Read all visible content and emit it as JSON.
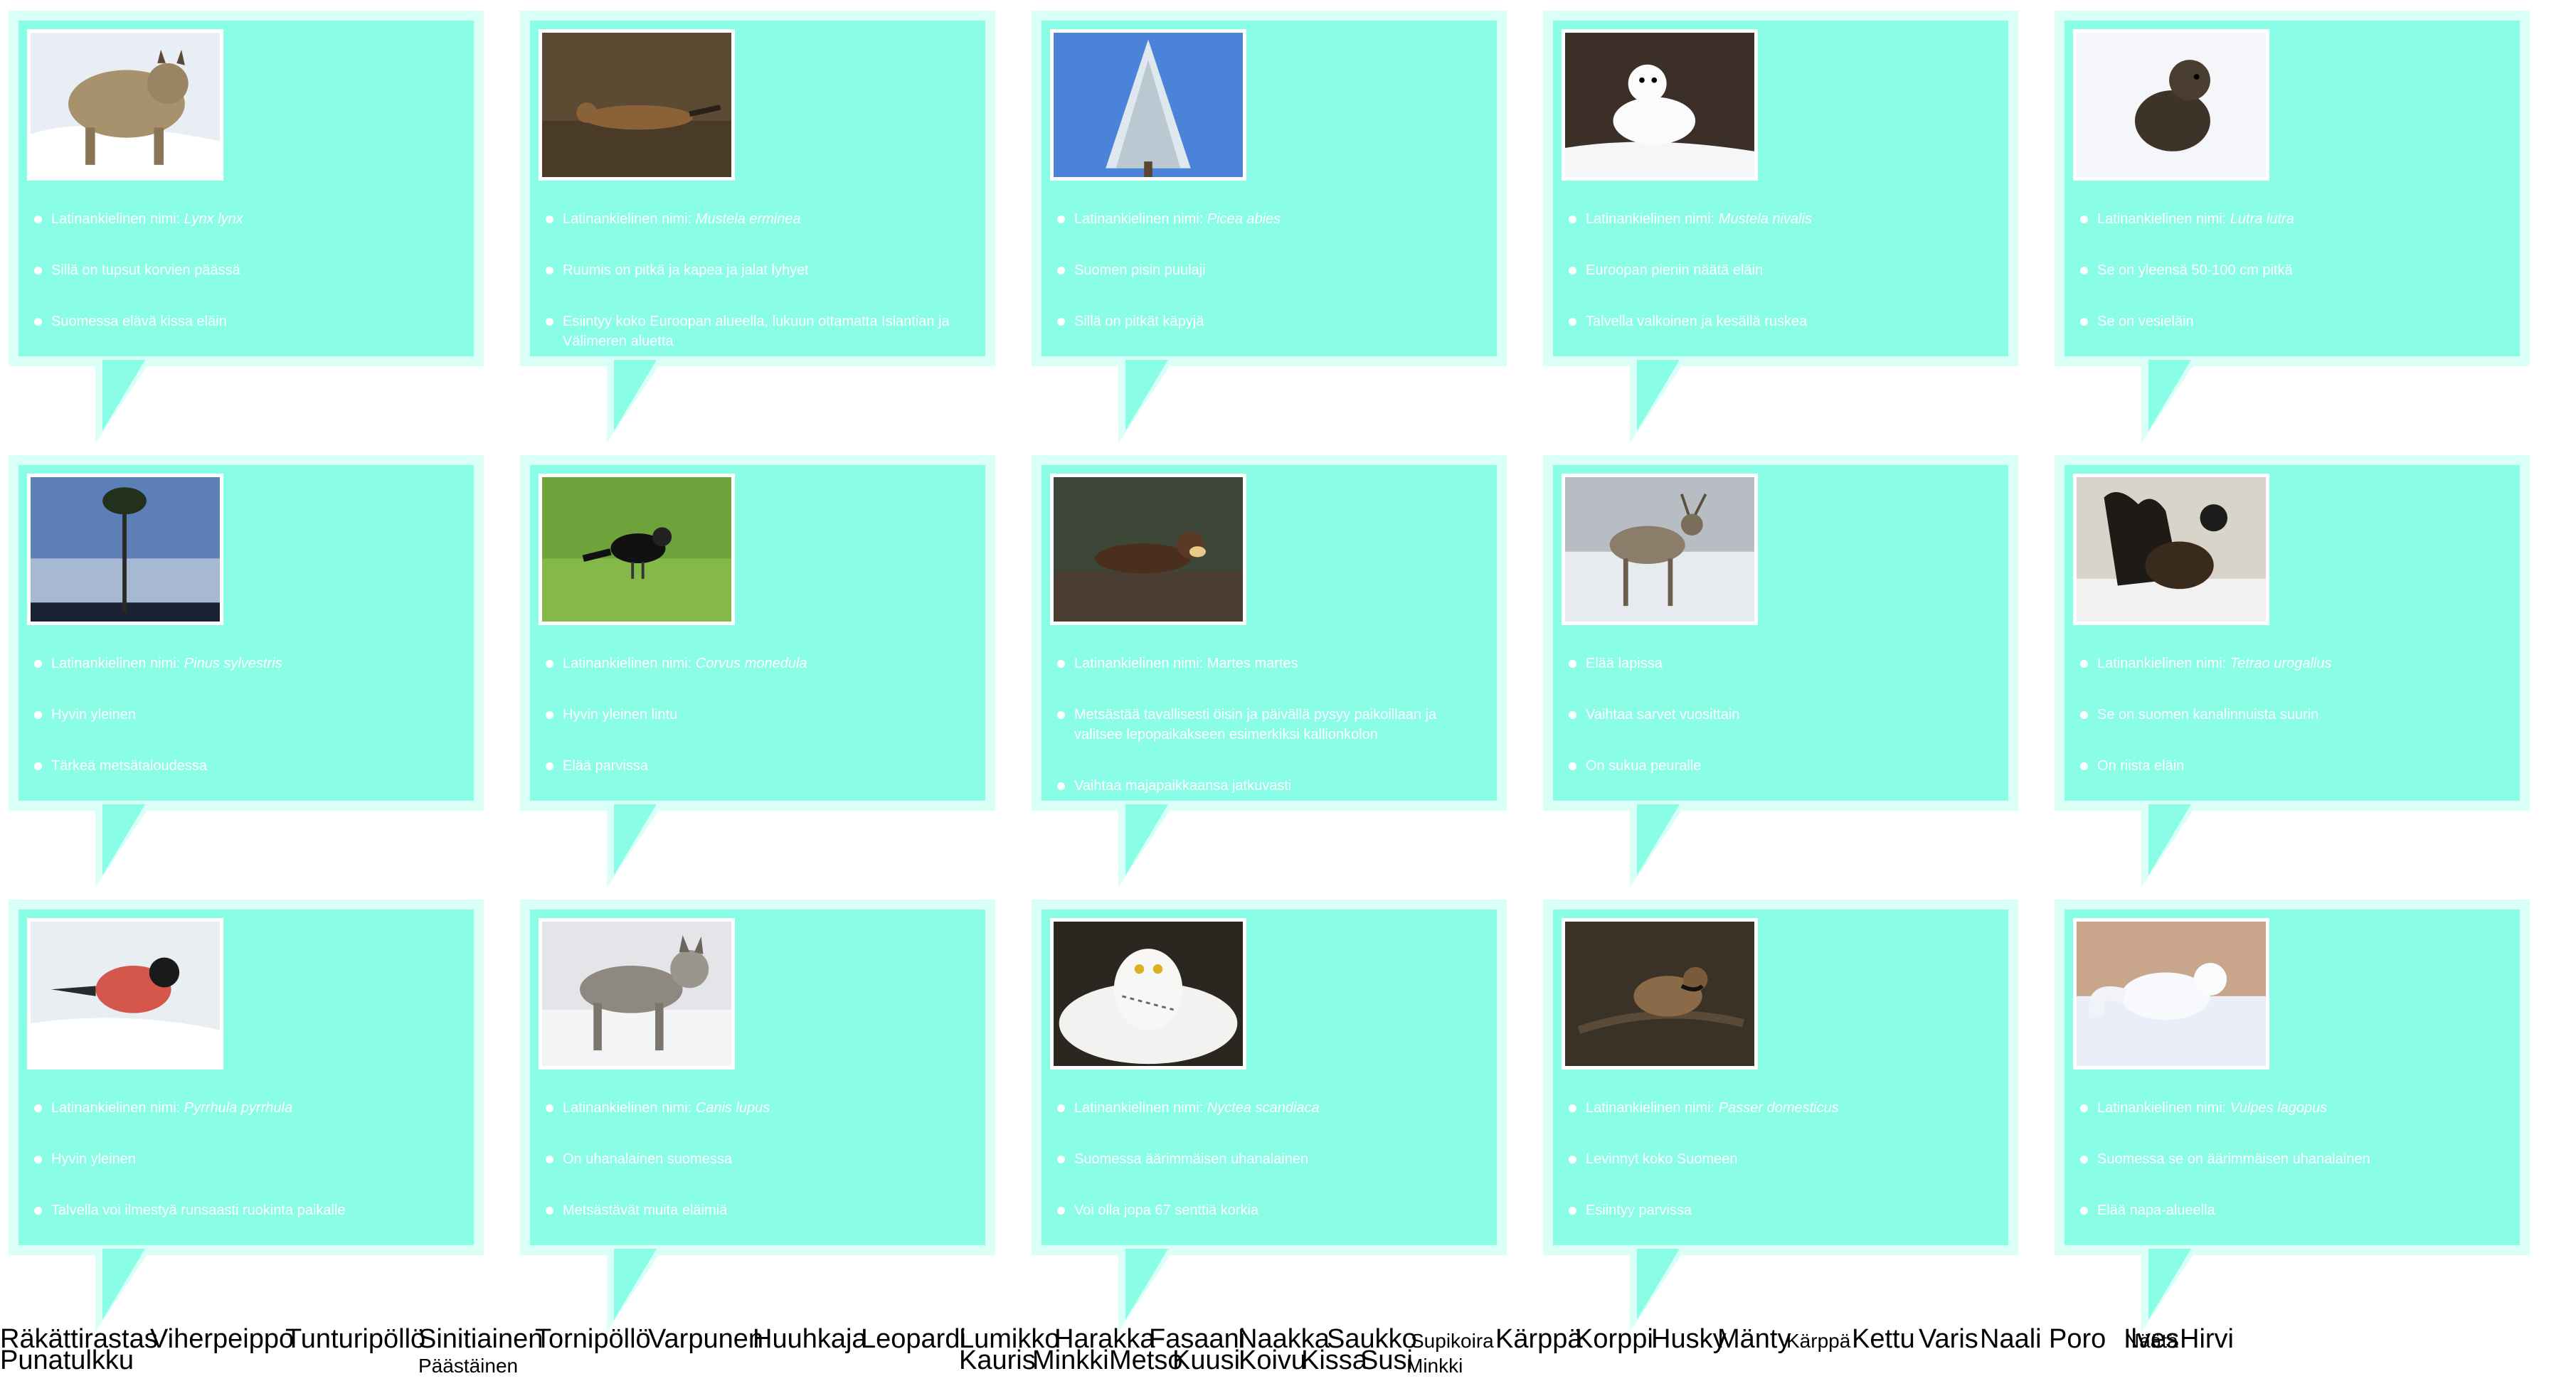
{
  "cards": [
    {
      "animal": "lynx",
      "facts": [
        "Latinankielinen nimi: ",
        "Sillä on tupsut korvien päässä",
        "Suomessa elävä kissa eläin"
      ],
      "latin": "Lynx lynx"
    },
    {
      "animal": "stoat",
      "facts": [
        "Latinankielinen nimi: ",
        "Ruumis on pitkä ja kapea ja jalat lyhyet",
        "Esiintyy koko Euroopan alueella, lukuun ottamatta Islantian ja Välimeren aluetta"
      ],
      "latin": "Mustela erminea"
    },
    {
      "animal": "spruce",
      "facts": [
        "Latinankielinen nimi: ",
        "Suomen pisin puulaji",
        "Sillä on pitkät käpyjä"
      ],
      "latin": "Picea abies"
    },
    {
      "animal": "weasel",
      "facts": [
        "Latinankielinen nimi: ",
        "Euroopan pienin näätä eläin",
        "Talvella valkoinen ja kesällä ruskea"
      ],
      "latin": "Mustela nivalis"
    },
    {
      "animal": "otter",
      "facts": [
        "Latinankielinen nimi: ",
        "Se on yleensä 50-100 cm pitkä",
        "Se on vesieläin"
      ],
      "latin": "Lutra lutra"
    },
    {
      "animal": "pine",
      "facts": [
        "Latinankielinen nimi: ",
        "Hyvin yleinen",
        "Tärkeä metsätaloudessa"
      ],
      "latin": "Pinus sylvestris"
    },
    {
      "animal": "jackdaw",
      "facts": [
        "Latinankielinen nimi: ",
        "Hyvin yleinen lintu",
        "Elää parvissa"
      ],
      "latin": "Corvus monedula"
    },
    {
      "animal": "marten",
      "facts": [
        "Latinankielinen nimi: Martes martes",
        "Metsästää tavallisesti öisin ja päivällä pysyy paikoillaan ja valitsee lepopaikakseen esimerkiksi kallionkolon",
        "Vaihtaa majapaikkaansa jatkuvasti"
      ],
      "latin": ""
    },
    {
      "animal": "reindeer",
      "facts": [
        "Elää lapissa",
        "Vaihtaa sarvet vuosittain",
        "On sukua peuralle"
      ],
      "latin": ""
    },
    {
      "animal": "capercaillie",
      "facts": [
        "Latinankielinen nimi: ",
        "Se on suomen kanalinnuista suurin",
        "On riista eläin"
      ],
      "latin": "Tetrao urogallus"
    },
    {
      "animal": "bullfinch",
      "facts": [
        "Latinankielinen nimi: ",
        "Hyvin yleinen",
        "Talvella voi ilmestyä runsaasti ruokinta paikalle"
      ],
      "latin": "Pyrrhula pyrrhula"
    },
    {
      "animal": "wolf",
      "facts": [
        "Latinankielinen nimi: ",
        "On uhanalainen suomessa",
        "Metsästävät muita eläimiä"
      ],
      "latin": "Canis lupus"
    },
    {
      "animal": "snowy-owl",
      "facts": [
        "Latinankielinen nimi: ",
        "Suomessa äärimmäisen uhanalainen",
        "Voi olla jopa 67 senttiä korkia"
      ],
      "latin": "Nyctea scandiaca"
    },
    {
      "animal": "sparrow",
      "facts": [
        "Latinankielinen nimi: ",
        "Levinnyt koko Suomeen",
        "Esiintyy parvissa"
      ],
      "latin": "Passer domesticus"
    },
    {
      "animal": "arctic-fox",
      "facts": [
        "Latinankielinen nimi: ",
        "Suomessa se on äärimmäisen uhanalainen",
        "Elää napa-alueella"
      ],
      "latin": "Vulpes lagopus"
    }
  ],
  "labels": [
    {
      "text": "Räkättirastas",
      "small": false
    },
    {
      "text": "Viherpeippo",
      "small": false
    },
    {
      "text": "Tunturipöllö",
      "small": false
    },
    {
      "text": "Sinitiainen",
      "small": false
    },
    {
      "text": "Tornipöllö",
      "small": false
    },
    {
      "text": "Varpunen",
      "small": false
    },
    {
      "text": "Huuhkaja",
      "small": false
    },
    {
      "text": "Leopardi",
      "small": false
    },
    {
      "text": "Lumikko",
      "small": false
    },
    {
      "text": "Harakka",
      "small": false
    },
    {
      "text": "Fasaani",
      "small": false
    },
    {
      "text": "Naakka",
      "small": false
    },
    {
      "text": "Saukko",
      "small": false
    },
    {
      "text": "Supikoira",
      "small": true
    },
    {
      "text": "Kärppä",
      "small": false
    },
    {
      "text": "Korppi",
      "small": false
    },
    {
      "text": "Husky",
      "small": false
    },
    {
      "text": "Mänty",
      "small": false
    },
    {
      "text": "Kärppä",
      "small": true
    },
    {
      "text": "Kettu",
      "small": false
    },
    {
      "text": "Varis",
      "small": false
    },
    {
      "text": "Naali",
      "small": false
    },
    {
      "text": "Poro",
      "small": false
    },
    {
      "text": "Ilves",
      "small": false
    },
    {
      "text": "Näätä",
      "small": true
    },
    {
      "text": "Hirvi",
      "small": false
    },
    {
      "text": "Punatulkku",
      "small": false
    },
    {
      "text": "Päästäinen",
      "small": true
    },
    {
      "text": "Kauris",
      "small": false
    },
    {
      "text": "Minkki",
      "small": false
    },
    {
      "text": "Metso",
      "small": false
    },
    {
      "text": "Kuusi",
      "small": false
    },
    {
      "text": "Koivu",
      "small": false
    },
    {
      "text": "Kissa",
      "small": false
    },
    {
      "text": "Susi",
      "small": false
    },
    {
      "text": "Minkki",
      "small": true
    }
  ]
}
